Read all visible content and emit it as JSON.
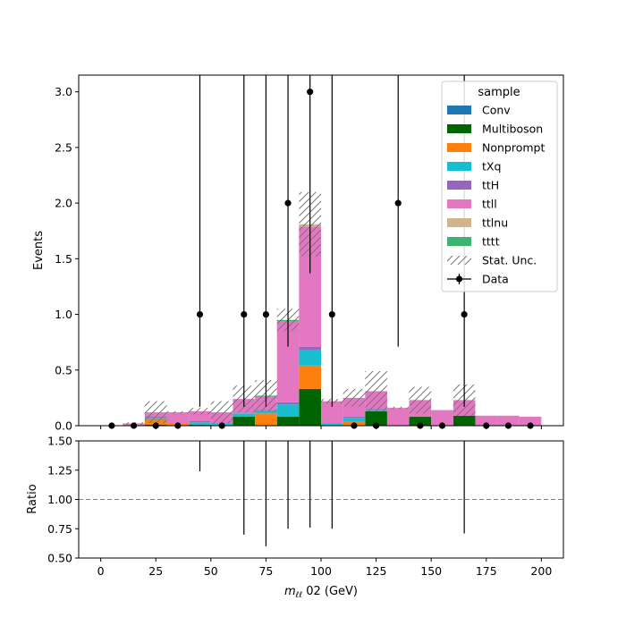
{
  "chart_data": [
    {
      "type": "bar",
      "stacked": true,
      "panel": "main",
      "ylabel": "Events",
      "ylim": [
        0,
        3.15
      ],
      "xlim": [
        -10,
        210
      ],
      "yticks": [
        "0.0",
        "0.5",
        "1.0",
        "1.5",
        "2.0",
        "2.5",
        "3.0"
      ],
      "ytick_values": [
        0,
        0.5,
        1.0,
        1.5,
        2.0,
        2.5,
        3.0
      ],
      "bin_edges": [
        10,
        20,
        30,
        40,
        50,
        60,
        70,
        80,
        90,
        100,
        110,
        120,
        130,
        140,
        150,
        160,
        170,
        180,
        190,
        200
      ],
      "series": [
        {
          "name": "Conv",
          "color": "#1f77b4",
          "values": [
            0,
            0,
            0,
            0,
            0,
            0,
            0,
            0,
            0,
            0,
            0,
            0,
            0,
            0,
            0,
            0,
            0,
            0,
            0
          ]
        },
        {
          "name": "Multiboson",
          "color": "#006400",
          "values": [
            0,
            0.01,
            0,
            0.01,
            0,
            0.08,
            0,
            0.08,
            0.33,
            0,
            0,
            0.13,
            0,
            0.08,
            0,
            0.09,
            0,
            0,
            0
          ]
        },
        {
          "name": "Nonprompt",
          "color": "#ff7f0e",
          "values": [
            0,
            0.05,
            0.02,
            0,
            0,
            0,
            0.11,
            0,
            0.21,
            0,
            0.04,
            0,
            0,
            0,
            0,
            0,
            0,
            0,
            0
          ]
        },
        {
          "name": "tXq",
          "color": "#17becf",
          "values": [
            0,
            0.01,
            0,
            0.02,
            0.02,
            0.03,
            0.02,
            0.11,
            0.14,
            0.02,
            0.03,
            0.01,
            0,
            0,
            0,
            0,
            0,
            0,
            0
          ]
        },
        {
          "name": "ttH",
          "color": "#9467bd",
          "values": [
            0,
            0.01,
            0,
            0.01,
            0,
            0,
            0.01,
            0.02,
            0.03,
            0,
            0.01,
            0.01,
            0,
            0,
            0,
            0,
            0,
            0,
            0
          ]
        },
        {
          "name": "ttll",
          "color": "#e377c2",
          "values": [
            0.02,
            0.04,
            0.1,
            0.09,
            0.1,
            0.13,
            0.12,
            0.73,
            1.08,
            0.2,
            0.17,
            0.16,
            0.16,
            0.15,
            0.14,
            0.14,
            0.09,
            0.09,
            0.08
          ]
        },
        {
          "name": "ttlnu",
          "color": "#d2b48c",
          "values": [
            0,
            0,
            0,
            0,
            0,
            0,
            0,
            0,
            0.02,
            0,
            0,
            0,
            0,
            0,
            0,
            0,
            0,
            0,
            0
          ]
        },
        {
          "name": "tttt",
          "color": "#3cb371",
          "values": [
            0,
            0,
            0,
            0,
            0,
            0,
            0.01,
            0.01,
            0,
            0,
            0,
            0,
            0,
            0,
            0,
            0,
            0,
            0,
            0
          ]
        }
      ],
      "stat_unc": {
        "name": "Stat. Unc.",
        "half_width": [
          0.01,
          0.1,
          0.01,
          0.03,
          0.1,
          0.12,
          0.14,
          0.1,
          0.29,
          0.02,
          0.08,
          0.18,
          0.01,
          0.12,
          0,
          0.14,
          0,
          0,
          0
        ]
      },
      "data_points": {
        "name": "Data",
        "x": [
          5,
          15,
          25,
          35,
          45,
          55,
          65,
          75,
          85,
          95,
          105,
          115,
          125,
          135,
          145,
          155,
          165,
          175,
          185,
          195
        ],
        "y": [
          0,
          0,
          0,
          0,
          1,
          0,
          1,
          1,
          2,
          3,
          1,
          0,
          0,
          2,
          0,
          0,
          1,
          0,
          0,
          0
        ],
        "err_low": [
          0,
          0,
          0,
          0,
          0.83,
          0,
          0.83,
          0.83,
          1.29,
          1.63,
          0.83,
          0,
          0,
          1.29,
          0,
          0,
          0.83,
          0,
          0,
          0
        ],
        "err_high": [
          0,
          0,
          0,
          0,
          2.3,
          0,
          2.3,
          2.3,
          2.64,
          2.92,
          2.3,
          0,
          0,
          2.64,
          0,
          0,
          2.3,
          0,
          0,
          0
        ]
      },
      "legend": {
        "title": "sample",
        "placement": "top-right",
        "entries": [
          "Conv",
          "Multiboson",
          "Nonprompt",
          "tXq",
          "ttH",
          "ttll",
          "ttlnu",
          "tttt",
          "Stat. Unc.",
          "Data"
        ]
      }
    },
    {
      "type": "scatter",
      "panel": "ratio",
      "ylabel": "Ratio",
      "xlabel": "m_ll 02 (GeV)",
      "xlabel_parts": {
        "m": "m",
        "sub": "ℓℓ",
        "rest": " 02 (GeV)"
      },
      "xlim": [
        -10,
        210
      ],
      "ylim": [
        0.5,
        1.5
      ],
      "xticks": [
        "0",
        "25",
        "50",
        "75",
        "100",
        "125",
        "150",
        "175",
        "200"
      ],
      "xtick_values": [
        0,
        25,
        50,
        75,
        100,
        125,
        150,
        175,
        200
      ],
      "yticks": [
        "0.50",
        "0.75",
        "1.00",
        "1.25",
        "1.50"
      ],
      "ytick_values": [
        0.5,
        0.75,
        1.0,
        1.25,
        1.5
      ],
      "reference_line": 1.0,
      "error_bars": [
        {
          "x": 45,
          "low": 1.24,
          "high": 1.5
        },
        {
          "x": 65,
          "low": 0.7,
          "high": 1.5
        },
        {
          "x": 75,
          "low": 0.6,
          "high": 1.5
        },
        {
          "x": 85,
          "low": 0.75,
          "high": 1.5
        },
        {
          "x": 95,
          "low": 0.76,
          "high": 1.5
        },
        {
          "x": 105,
          "low": 0.75,
          "high": 1.5
        },
        {
          "x": 165,
          "low": 0.71,
          "high": 1.5
        }
      ]
    }
  ]
}
